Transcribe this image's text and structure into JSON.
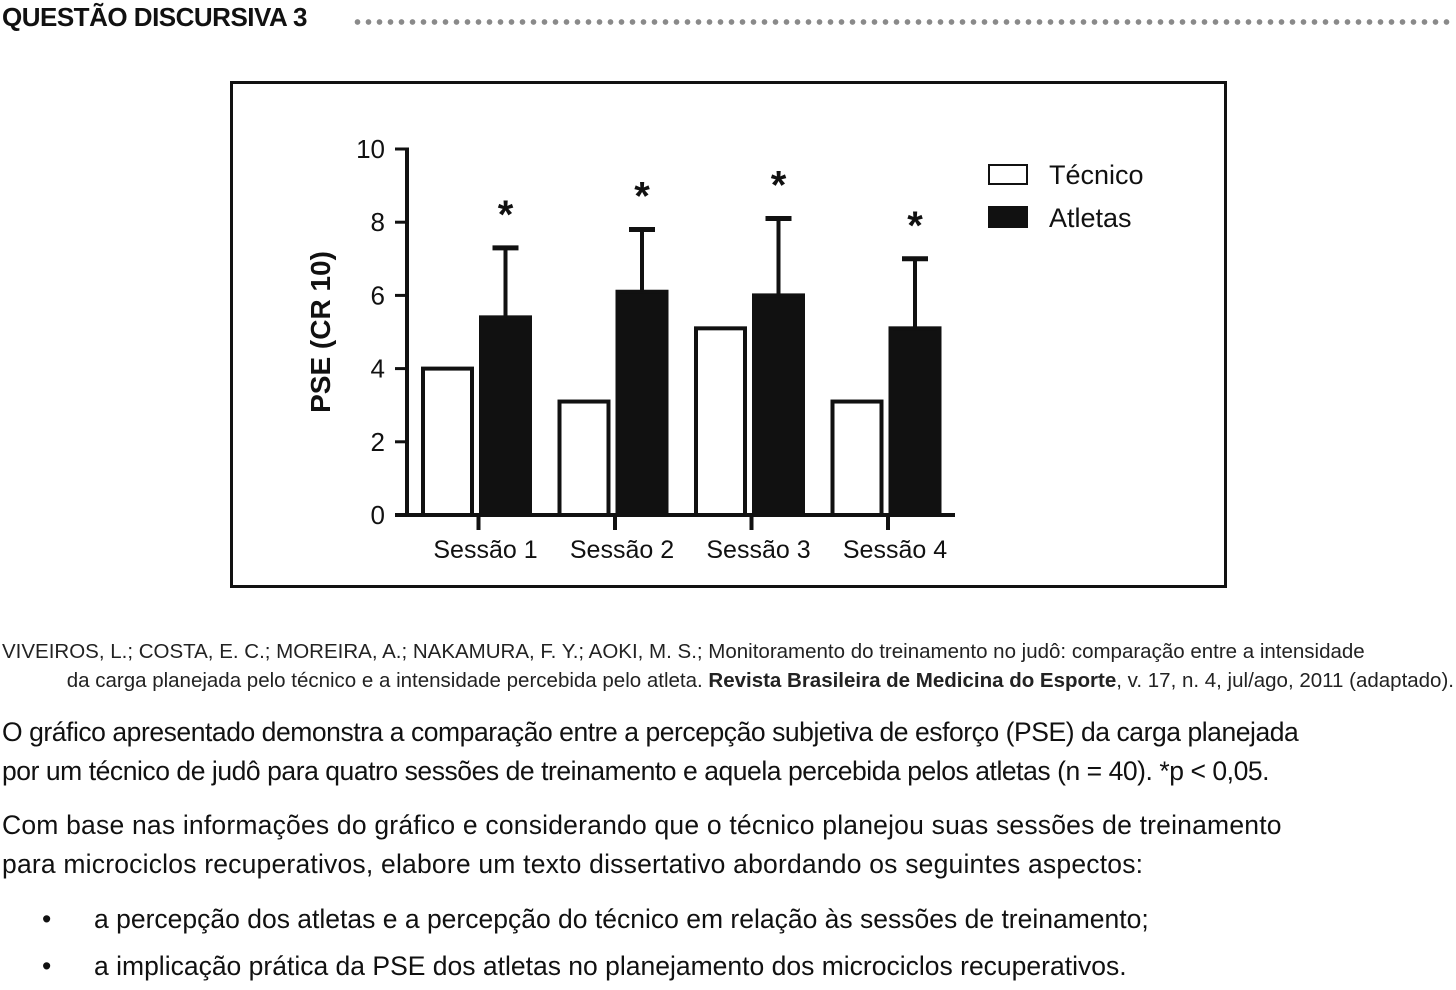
{
  "header": {
    "title": "QUESTÃO DISCURSIVA 3"
  },
  "chart_data": {
    "type": "bar",
    "title": "",
    "xlabel": "",
    "ylabel": "PSE (CR 10)",
    "ylim": [
      0,
      10
    ],
    "yticks": [
      "0",
      "2",
      "4",
      "6",
      "8",
      "10"
    ],
    "categories": [
      "Sessão 1",
      "Sessão 2",
      "Sessão 3",
      "Sessão 4"
    ],
    "series": [
      {
        "name": "Técnico",
        "values": [
          4.0,
          3.1,
          5.1,
          3.1
        ],
        "fill": "#ffffff"
      },
      {
        "name": "Atletas",
        "values": [
          5.4,
          6.1,
          6.0,
          5.1
        ],
        "fill": "#111111",
        "error_upper": [
          7.3,
          7.8,
          8.1,
          7.0
        ]
      }
    ],
    "significance_marker": "*",
    "grid": false,
    "legend_position": "top-right"
  },
  "citation": {
    "line1": "VIVEIROS, L.; COSTA, E. C.; MOREIRA, A.; NAKAMURA, F. Y.; AOKI, M. S.; Monitoramento do treinamento no judô: comparação entre a intensidade",
    "line2_pre": "da carga planejada pelo técnico e a intensidade percebida pelo atleta. ",
    "journal": "Revista Brasileira de Medicina do Esporte",
    "line2_post": ", v. 17, n. 4, jul/ago, 2011 (adaptado)."
  },
  "paragraphs": {
    "p1_line1": "O gráfico apresentado demonstra a comparação entre a percepção subjetiva de esforço (PSE) da carga planejada",
    "p1_line2": "por um técnico de judô para quatro sessões de treinamento e aquela percebida pelos atletas (n = 40). *p < 0,05.",
    "p2_line1": "Com base nas informações do gráfico e considerando que o técnico planejou suas sessões de treinamento",
    "p2_line2": "para microciclos recuperativos, elabore um texto dissertativo abordando os seguintes aspectos:"
  },
  "bullets": {
    "marker": "•",
    "items": [
      "a percepção dos atletas e a percepção do técnico em relação às sessões de treinamento;",
      "a implicação prática da PSE dos atletas no planejamento dos microciclos recuperativos."
    ]
  }
}
